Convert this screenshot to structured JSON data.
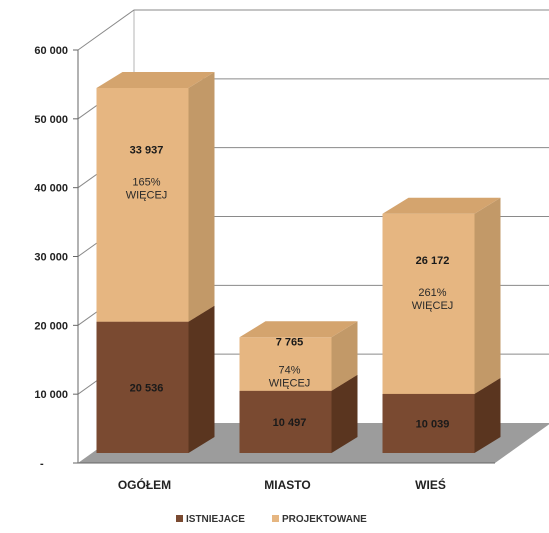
{
  "chart_data": {
    "type": "bar",
    "stacked": true,
    "three_d": true,
    "categories": [
      "OGÓŁEM",
      "MIASTO",
      "WIEŚ"
    ],
    "series": [
      {
        "name": "ISTNIEJACE",
        "values": [
          20536,
          10497,
          10039
        ],
        "labels": [
          "20 536",
          "10 497",
          "10 039"
        ],
        "color": "#7a4a31"
      },
      {
        "name": "PROJEKTOWANE",
        "values": [
          33937,
          7765,
          26172
        ],
        "labels": [
          "33 937",
          "7 765",
          "26 172"
        ],
        "color": "#e6b681"
      }
    ],
    "annotations": [
      {
        "line1": "165%",
        "line2": "WIĘCEJ"
      },
      {
        "line1": "74%",
        "line2": "WIĘCEJ"
      },
      {
        "line1": "261%",
        "line2": "WIĘCEJ"
      }
    ],
    "y_ticks": [
      {
        "value": 0,
        "label": "-"
      },
      {
        "value": 10000,
        "label": "10 000"
      },
      {
        "value": 20000,
        "label": "20 000"
      },
      {
        "value": 30000,
        "label": "30 000"
      },
      {
        "value": 40000,
        "label": "40 000"
      },
      {
        "value": 50000,
        "label": "50 000"
      },
      {
        "value": 60000,
        "label": "60 000"
      }
    ],
    "ylim": [
      0,
      60000
    ],
    "grid": true,
    "legend_position": "bottom",
    "title": "",
    "xlabel": "",
    "ylabel": ""
  }
}
